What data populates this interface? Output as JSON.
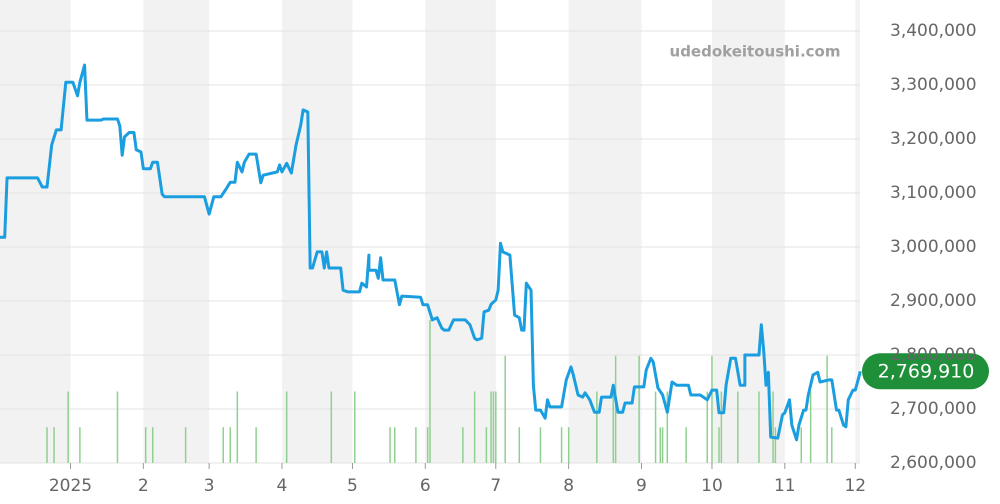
{
  "chart_data": {
    "type": "line",
    "watermark": "udedokeitoushi.com",
    "current_label": "2,769,910",
    "xlim": [
      0,
      366
    ],
    "xticks": [
      {
        "value": 30,
        "label": "2025"
      },
      {
        "value": 61,
        "label": "2"
      },
      {
        "value": 89,
        "label": "3"
      },
      {
        "value": 120,
        "label": "4"
      },
      {
        "value": 150,
        "label": "5"
      },
      {
        "value": 181,
        "label": "6"
      },
      {
        "value": 211,
        "label": "7"
      },
      {
        "value": 242,
        "label": "8"
      },
      {
        "value": 273,
        "label": "9"
      },
      {
        "value": 303,
        "label": "10"
      },
      {
        "value": 334,
        "label": "11"
      },
      {
        "value": 364,
        "label": "12"
      }
    ],
    "ylim": [
      2600000,
      3400000
    ],
    "yticks": [
      {
        "value": 2600000,
        "label": "2,600,000"
      },
      {
        "value": 2700000,
        "label": "2,700,000"
      },
      {
        "value": 2800000,
        "label": "2,800,000"
      },
      {
        "value": 2900000,
        "label": "2,900,000"
      },
      {
        "value": 3000000,
        "label": "3,000,000"
      },
      {
        "value": 3100000,
        "label": "3,100,000"
      },
      {
        "value": 3200000,
        "label": "3,200,000"
      },
      {
        "value": 3300000,
        "label": "3,300,000"
      },
      {
        "value": 3400000,
        "label": "3,400,000"
      }
    ],
    "grid": true,
    "x": [
      0,
      2,
      3,
      16,
      18,
      20,
      22,
      24,
      26,
      28,
      31,
      33,
      34,
      36,
      37,
      43,
      44,
      50,
      51,
      52,
      53,
      55,
      57,
      58,
      60,
      61,
      64,
      65,
      67,
      69,
      70,
      81,
      87,
      89,
      91,
      94,
      96,
      98,
      100,
      101,
      103,
      104,
      106,
      109,
      111,
      112,
      116,
      118,
      119,
      120,
      122,
      124,
      126,
      128,
      129,
      131,
      132,
      133,
      135,
      137,
      138,
      139,
      140,
      145,
      146,
      148,
      153,
      154,
      156,
      157,
      157,
      160,
      161,
      162,
      163,
      168,
      170,
      171,
      179,
      180,
      182,
      184,
      186,
      188,
      189,
      191,
      193,
      198,
      200,
      202,
      203,
      205,
      206,
      208,
      209,
      211,
      212,
      213,
      214,
      217,
      219,
      221,
      222,
      223,
      224,
      226,
      227,
      228,
      230,
      232,
      233,
      234,
      239,
      241,
      243,
      244,
      246,
      248,
      249,
      251,
      253,
      255,
      256,
      260,
      261,
      263,
      265,
      266,
      269,
      270,
      274,
      275,
      277,
      278,
      280,
      282,
      284,
      286,
      288,
      293,
      294,
      298,
      301,
      303,
      305,
      306,
      308,
      309,
      311,
      313,
      315,
      317,
      317,
      323,
      324,
      325,
      326,
      327,
      328,
      331,
      333,
      334,
      336,
      337,
      339,
      340,
      342,
      343,
      344,
      346,
      348,
      349,
      353,
      354,
      356,
      357,
      359,
      360,
      361,
      363,
      364,
      366,
      366
    ],
    "series": [
      {
        "color": "#1a9ee0",
        "values": [
          3018000,
          3018000,
          3128000,
          3128000,
          3111000,
          3111000,
          3189000,
          3217000,
          3217000,
          3305000,
          3305000,
          3280000,
          3305000,
          3337000,
          3235000,
          3235000,
          3237000,
          3237000,
          3224000,
          3170000,
          3204000,
          3212000,
          3212000,
          3180000,
          3176000,
          3145000,
          3145000,
          3157000,
          3157000,
          3098000,
          3093000,
          3093000,
          3093000,
          3061000,
          3093000,
          3093000,
          3106000,
          3120000,
          3120000,
          3157000,
          3139000,
          3157000,
          3172000,
          3172000,
          3119000,
          3133000,
          3137000,
          3139000,
          3152000,
          3139000,
          3155000,
          3137000,
          3189000,
          3226000,
          3254000,
          3250000,
          2961000,
          2961000,
          2991000,
          2991000,
          2961000,
          2991000,
          2961000,
          2961000,
          2920000,
          2917000,
          2917000,
          2933000,
          2926000,
          2985000,
          2957000,
          2957000,
          2942000,
          2980000,
          2939000,
          2939000,
          2893000,
          2909000,
          2907000,
          2893000,
          2893000,
          2865000,
          2869000,
          2850000,
          2846000,
          2846000,
          2865000,
          2865000,
          2856000,
          2831000,
          2828000,
          2831000,
          2880000,
          2883000,
          2894000,
          2902000,
          2920000,
          3007000,
          2991000,
          2985000,
          2874000,
          2869000,
          2846000,
          2846000,
          2933000,
          2920000,
          2744000,
          2698000,
          2698000,
          2683000,
          2717000,
          2704000,
          2704000,
          2754000,
          2778000,
          2763000,
          2726000,
          2722000,
          2730000,
          2717000,
          2694000,
          2694000,
          2722000,
          2722000,
          2744000,
          2694000,
          2694000,
          2711000,
          2711000,
          2741000,
          2741000,
          2772000,
          2794000,
          2787000,
          2739000,
          2726000,
          2694000,
          2750000,
          2744000,
          2744000,
          2726000,
          2726000,
          2717000,
          2735000,
          2735000,
          2693000,
          2693000,
          2744000,
          2794000,
          2794000,
          2744000,
          2744000,
          2800000,
          2800000,
          2856000,
          2809000,
          2744000,
          2768000,
          2648000,
          2646000,
          2689000,
          2693000,
          2717000,
          2670000,
          2643000,
          2670000,
          2698000,
          2698000,
          2726000,
          2763000,
          2768000,
          2750000,
          2754000,
          2754000,
          2698000,
          2698000,
          2670000,
          2667000,
          2717000,
          2735000,
          2735000,
          2767000,
          2769910
        ]
      }
    ],
    "volume": {
      "color": "#8fd08f",
      "x": [
        20,
        23,
        29,
        34,
        50,
        62,
        65,
        79,
        95,
        98,
        101,
        109,
        122,
        141,
        151,
        166,
        168,
        177,
        182,
        183,
        197,
        202,
        207,
        209,
        210,
        211,
        215,
        221,
        230,
        239,
        242,
        254,
        261,
        262,
        272,
        279,
        281,
        282,
        284,
        292,
        301,
        303,
        306,
        307,
        314,
        323,
        329,
        330,
        341,
        345,
        352,
        354
      ],
      "values": [
        1,
        1,
        2,
        1,
        2,
        1,
        1,
        1,
        1,
        1,
        2,
        1,
        2,
        2,
        2,
        1,
        1,
        1,
        1,
        4,
        1,
        2,
        1,
        2,
        2,
        2,
        3,
        1,
        1,
        1,
        1,
        2,
        2,
        3,
        3,
        2,
        1,
        1,
        2,
        1,
        2,
        3,
        1,
        2,
        2,
        2,
        2,
        1,
        1,
        2,
        3,
        1
      ]
    }
  }
}
